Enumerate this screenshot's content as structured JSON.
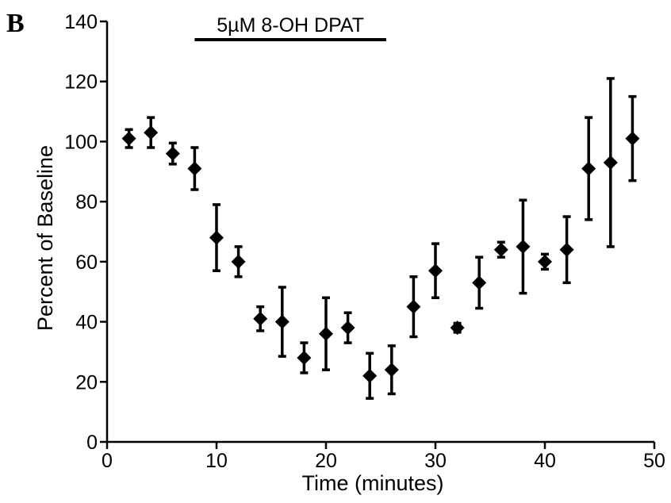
{
  "panel_label": "B",
  "chart_data": {
    "type": "scatter",
    "xlabel": "Time (minutes)",
    "ylabel": "Percent of Baseline",
    "xlim": [
      0,
      50
    ],
    "ylim": [
      0,
      140
    ],
    "xticks": [
      0,
      10,
      20,
      30,
      40,
      50
    ],
    "yticks": [
      0,
      20,
      40,
      60,
      80,
      100,
      120,
      140
    ],
    "grid": false,
    "annotation": {
      "text": "5µM 8-OH DPAT",
      "x_start": 8,
      "x_end": 25.5
    },
    "marker": "diamond",
    "color": "#000000",
    "points": [
      {
        "x": 2,
        "y": 101,
        "err": 3
      },
      {
        "x": 4,
        "y": 103,
        "err": 5
      },
      {
        "x": 6,
        "y": 96,
        "err": 3.5
      },
      {
        "x": 8,
        "y": 91,
        "err": 7
      },
      {
        "x": 10,
        "y": 68,
        "err": 11
      },
      {
        "x": 12,
        "y": 60,
        "err": 5
      },
      {
        "x": 14,
        "y": 41,
        "err": 4
      },
      {
        "x": 16,
        "y": 40,
        "err": 11.5
      },
      {
        "x": 18,
        "y": 28,
        "err": 5
      },
      {
        "x": 20,
        "y": 36,
        "err": 12
      },
      {
        "x": 22,
        "y": 38,
        "err": 5
      },
      {
        "x": 24,
        "y": 22,
        "err": 7.5
      },
      {
        "x": 26,
        "y": 24,
        "err": 8
      },
      {
        "x": 28,
        "y": 45,
        "err": 10
      },
      {
        "x": 30,
        "y": 57,
        "err": 9
      },
      {
        "x": 32,
        "y": 38,
        "err": 1.5
      },
      {
        "x": 34,
        "y": 53,
        "err": 8.5
      },
      {
        "x": 36,
        "y": 64,
        "err": 2.5
      },
      {
        "x": 38,
        "y": 65,
        "err": 15.5
      },
      {
        "x": 40,
        "y": 60,
        "err": 2.5
      },
      {
        "x": 42,
        "y": 64,
        "err": 11
      },
      {
        "x": 44,
        "y": 91,
        "err": 17
      },
      {
        "x": 46,
        "y": 93,
        "err": 28
      },
      {
        "x": 48,
        "y": 101,
        "err": 14
      }
    ]
  }
}
